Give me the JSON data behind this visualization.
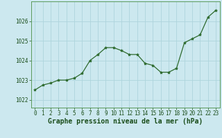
{
  "x": [
    0,
    1,
    2,
    3,
    4,
    5,
    6,
    7,
    8,
    9,
    10,
    11,
    12,
    13,
    14,
    15,
    16,
    17,
    18,
    19,
    20,
    21,
    22,
    23
  ],
  "y": [
    1022.5,
    1022.75,
    1022.85,
    1023.0,
    1023.0,
    1023.1,
    1023.35,
    1024.0,
    1024.3,
    1024.65,
    1024.65,
    1024.5,
    1024.3,
    1024.3,
    1023.85,
    1023.75,
    1023.4,
    1023.4,
    1023.6,
    1024.9,
    1025.1,
    1025.3,
    1026.2,
    1026.55
  ],
  "line_color": "#2d6a2d",
  "marker": "*",
  "marker_color": "#2d6a2d",
  "marker_size": 3,
  "bg_color": "#cce8ef",
  "grid_color": "#aed4dc",
  "xlabel": "Graphe pression niveau de la mer (hPa)",
  "xlabel_color": "#1a4d1a",
  "xlabel_fontsize": 7,
  "tick_color": "#1a4d1a",
  "tick_fontsize": 5.5,
  "ylim": [
    1021.6,
    1027.0
  ],
  "yticks": [
    1022,
    1023,
    1024,
    1025,
    1026
  ],
  "xlim": [
    -0.5,
    23.5
  ],
  "xticks": [
    0,
    1,
    2,
    3,
    4,
    5,
    6,
    7,
    8,
    9,
    10,
    11,
    12,
    13,
    14,
    15,
    16,
    17,
    18,
    19,
    20,
    21,
    22,
    23
  ]
}
